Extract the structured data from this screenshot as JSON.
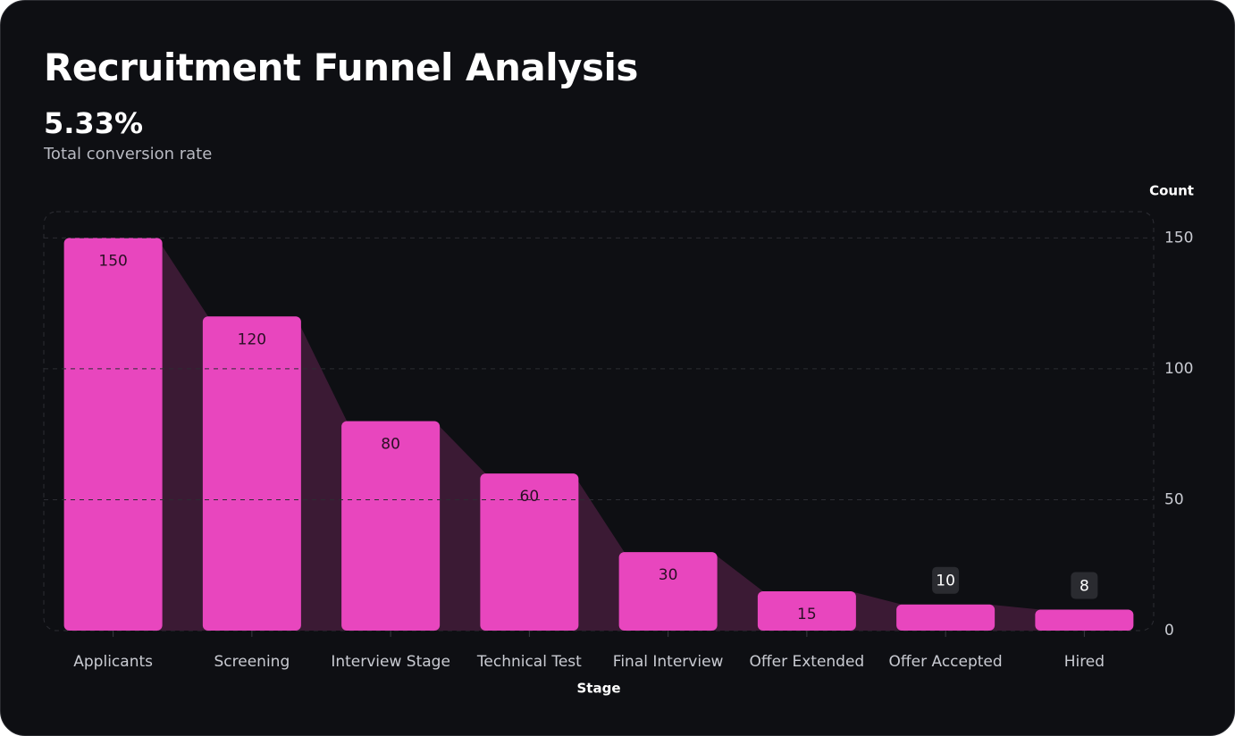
{
  "chart_data": {
    "type": "funnel-bar",
    "title": "Recruitment Funnel Analysis",
    "kpi": {
      "value": "5.33%",
      "label": "Total conversion rate"
    },
    "x_label": "Stage",
    "y_label": "Count",
    "categories": [
      "Applicants",
      "Screening",
      "Interview Stage",
      "Technical Test",
      "Final Interview",
      "Offer Extended",
      "Offer Accepted",
      "Hired"
    ],
    "values": [
      150,
      120,
      80,
      60,
      30,
      15,
      10,
      8
    ],
    "color": "#e846be",
    "connector_color": "#3b1a34",
    "ylim": [
      0,
      160
    ],
    "yticks": [
      0,
      50,
      100,
      150
    ],
    "grid": true
  }
}
